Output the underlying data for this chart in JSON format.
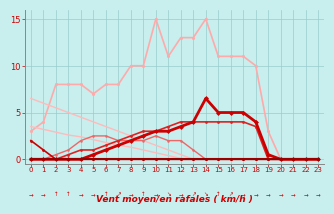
{
  "xlabel": "Vent moyen/en rafales ( km/h )",
  "background_color": "#c8eeee",
  "grid_color": "#99cccc",
  "x": [
    0,
    1,
    2,
    3,
    4,
    5,
    6,
    7,
    8,
    9,
    10,
    11,
    12,
    13,
    14,
    15,
    16,
    17,
    18,
    19,
    20,
    21,
    22,
    23
  ],
  "series": [
    {
      "comment": "light pink - large peaks going up to 15, with markers",
      "y": [
        3,
        4,
        8,
        8,
        8,
        7,
        8,
        8,
        10,
        10,
        15,
        11,
        13,
        13,
        15,
        11,
        11,
        11,
        10,
        3,
        0,
        0,
        0,
        0
      ],
      "color": "#ffaaaa",
      "lw": 1.2,
      "marker": "o",
      "ms": 2.2,
      "zorder": 2
    },
    {
      "comment": "light pink diagonal line from top-left to bottom-right - no marker",
      "y": [
        6.5,
        6.0,
        5.5,
        5.0,
        4.5,
        4.0,
        3.5,
        3.0,
        2.5,
        2.0,
        1.5,
        1.0,
        0.5,
        0,
        0,
        0,
        0,
        0,
        0,
        0,
        0,
        0,
        0,
        0
      ],
      "color": "#ffbbbb",
      "lw": 1.0,
      "marker": null,
      "ms": 0,
      "zorder": 2
    },
    {
      "comment": "light pink lower diagonal - no marker",
      "y": [
        3.5,
        3.2,
        2.9,
        2.6,
        2.4,
        2.1,
        1.8,
        1.5,
        1.3,
        1.0,
        0.7,
        0.4,
        0.1,
        0,
        0,
        0,
        0,
        0,
        0,
        0,
        0,
        0,
        0,
        0
      ],
      "color": "#ffbbbb",
      "lw": 1.0,
      "marker": null,
      "ms": 0,
      "zorder": 2
    },
    {
      "comment": "medium red - starts at ~2 drops to 0 at x=2, then rises with markers",
      "y": [
        2,
        1,
        0,
        0,
        0,
        0,
        0,
        0,
        0,
        0,
        0,
        0,
        0,
        0,
        0,
        0,
        0,
        0,
        0,
        0,
        0,
        0,
        0,
        0
      ],
      "color": "#cc0000",
      "lw": 1.2,
      "marker": "o",
      "ms": 2.0,
      "zorder": 4
    },
    {
      "comment": "dark red thick - rises from 0, peaks around 13-14, drops sharply to 0 at x=19",
      "y": [
        0,
        0,
        0,
        0,
        0,
        0.5,
        1,
        1.5,
        2,
        2.5,
        3,
        3,
        3.5,
        4,
        6.5,
        5,
        5,
        5,
        4,
        0.5,
        0,
        0,
        0,
        0
      ],
      "color": "#cc0000",
      "lw": 2.0,
      "marker": "D",
      "ms": 2.5,
      "zorder": 5
    },
    {
      "comment": "medium-dark red with markers - moderate values",
      "y": [
        0,
        0,
        0,
        0.5,
        1,
        1,
        1.5,
        2,
        2.5,
        3,
        3,
        3.5,
        4,
        4,
        4,
        4,
        4,
        4,
        3.5,
        0,
        0,
        0,
        0,
        0
      ],
      "color": "#dd2222",
      "lw": 1.2,
      "marker": "o",
      "ms": 2.0,
      "zorder": 4
    },
    {
      "comment": "pinkish red - small values near bottom",
      "y": [
        0,
        0,
        0.5,
        1,
        2,
        2.5,
        2.5,
        2,
        2,
        2,
        2.5,
        2,
        2,
        1,
        0,
        0,
        0,
        0,
        0,
        0,
        0,
        0,
        0,
        0
      ],
      "color": "#ee6666",
      "lw": 1.0,
      "marker": "o",
      "ms": 1.8,
      "zorder": 3
    },
    {
      "comment": "dark red mostly at 0 with tiny bump",
      "y": [
        0,
        0,
        0,
        0,
        0,
        0,
        0,
        0,
        0,
        0,
        0,
        0,
        0,
        0,
        0,
        0,
        0,
        0,
        0,
        0,
        0,
        0,
        0,
        0
      ],
      "color": "#990000",
      "lw": 1.5,
      "marker": "o",
      "ms": 2.0,
      "zorder": 5
    }
  ],
  "arrows": [
    "→",
    "→",
    "↑",
    "↑",
    "→",
    "→",
    "↑",
    "↗",
    "→",
    "↑",
    "→",
    "↘",
    "→",
    "↗",
    "↘",
    "↑",
    "↗",
    "→",
    "→",
    "→",
    "→",
    "→",
    "→",
    "→"
  ],
  "ylim": [
    -0.5,
    16
  ],
  "yticks": [
    0,
    5,
    10,
    15
  ],
  "xlim": [
    -0.5,
    23.5
  ],
  "tick_color": "#cc0000",
  "label_color": "#cc0000"
}
